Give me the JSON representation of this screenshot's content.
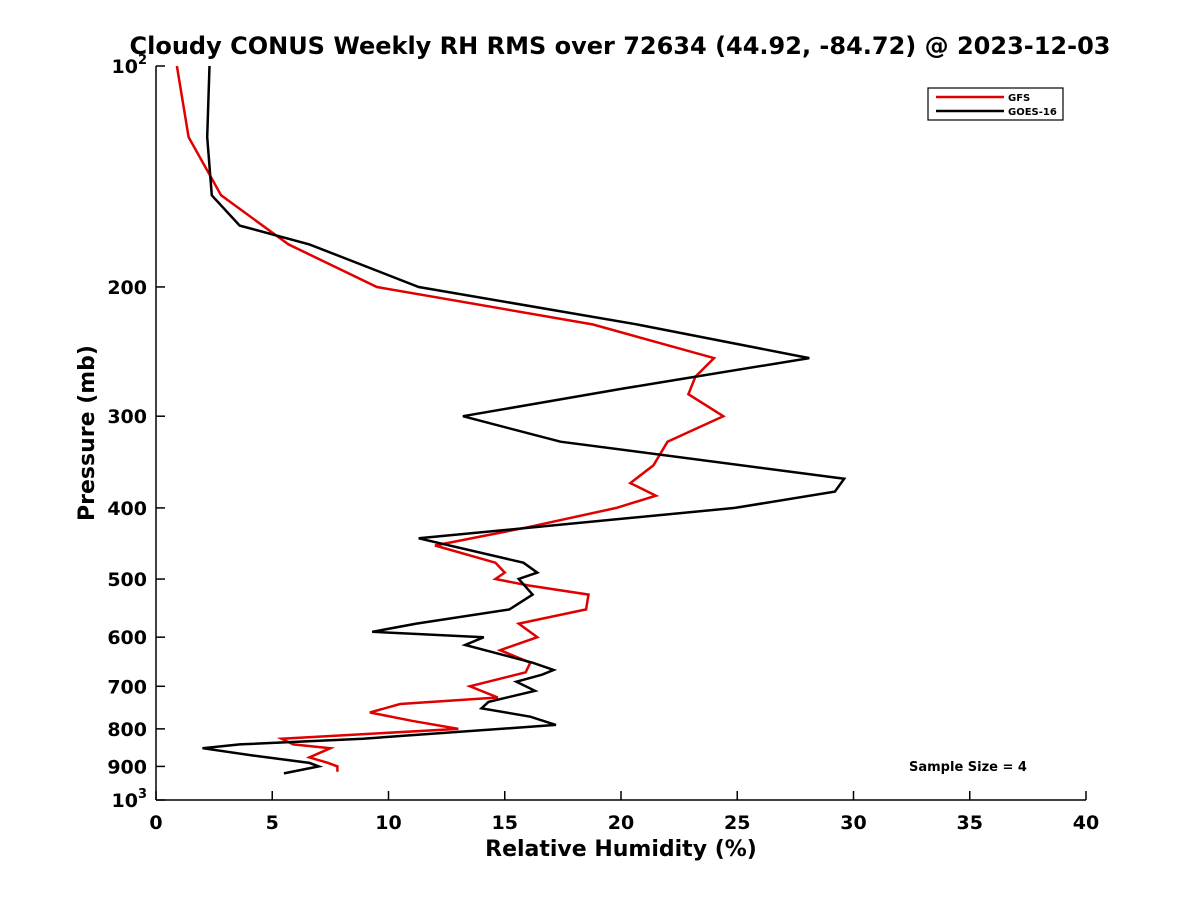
{
  "chart_data": {
    "type": "line",
    "title": "Cloudy CONUS Weekly RH RMS over 72634 (44.92, -84.72) @ 2023-12-03",
    "xlabel": "Relative Humidity (%)",
    "ylabel": "Pressure (mb)",
    "xlim": [
      0,
      40
    ],
    "ylim": [
      100,
      1000
    ],
    "y_scale": "log",
    "y_reversed": true,
    "grid": false,
    "legend_position": "top-right",
    "x_ticks": [
      "0",
      "5",
      "10",
      "15",
      "20",
      "25",
      "30",
      "35",
      "40"
    ],
    "y_ticks": [
      {
        "value": 100,
        "base": "10",
        "exp": "2"
      },
      {
        "value": 200,
        "label": "200"
      },
      {
        "value": 300,
        "label": "300"
      },
      {
        "value": 400,
        "label": "400"
      },
      {
        "value": 500,
        "label": "500"
      },
      {
        "value": 600,
        "label": "600"
      },
      {
        "value": 700,
        "label": "700"
      },
      {
        "value": 800,
        "label": "800"
      },
      {
        "value": 900,
        "label": "900"
      },
      {
        "value": 1000,
        "base": "10",
        "exp": "3"
      }
    ],
    "series": [
      {
        "name": "GFS",
        "color": "#e00000",
        "points": [
          [
            0.9,
            100
          ],
          [
            1.4,
            125
          ],
          [
            2.8,
            150
          ],
          [
            5.7,
            175
          ],
          [
            9.5,
            200
          ],
          [
            18.8,
            225
          ],
          [
            24.0,
            250
          ],
          [
            23.2,
            265
          ],
          [
            22.9,
            280
          ],
          [
            24.4,
            300
          ],
          [
            22.0,
            325
          ],
          [
            21.4,
            350
          ],
          [
            20.4,
            370
          ],
          [
            21.5,
            385
          ],
          [
            19.8,
            400
          ],
          [
            16.0,
            425
          ],
          [
            12.0,
            450
          ],
          [
            14.6,
            475
          ],
          [
            15.0,
            490
          ],
          [
            14.6,
            500
          ],
          [
            16.0,
            510
          ],
          [
            18.6,
            525
          ],
          [
            18.5,
            550
          ],
          [
            15.6,
            575
          ],
          [
            16.4,
            600
          ],
          [
            14.8,
            625
          ],
          [
            16.1,
            650
          ],
          [
            15.9,
            670
          ],
          [
            13.5,
            700
          ],
          [
            14.7,
            725
          ],
          [
            10.5,
            740
          ],
          [
            9.2,
            760
          ],
          [
            11.0,
            780
          ],
          [
            13.0,
            800
          ],
          [
            5.4,
            825
          ],
          [
            5.9,
            840
          ],
          [
            7.5,
            850
          ],
          [
            6.6,
            875
          ],
          [
            7.4,
            890
          ],
          [
            7.8,
            900
          ],
          [
            7.8,
            915
          ]
        ]
      },
      {
        "name": "GOES-16",
        "color": "#000000",
        "points": [
          [
            2.3,
            100
          ],
          [
            2.2,
            125
          ],
          [
            2.4,
            150
          ],
          [
            3.6,
            165
          ],
          [
            6.6,
            175
          ],
          [
            11.3,
            200
          ],
          [
            20.7,
            225
          ],
          [
            28.1,
            250
          ],
          [
            20.1,
            275
          ],
          [
            15.9,
            290
          ],
          [
            13.2,
            300
          ],
          [
            17.4,
            325
          ],
          [
            29.6,
            365
          ],
          [
            29.2,
            380
          ],
          [
            24.9,
            400
          ],
          [
            11.3,
            440
          ],
          [
            15.8,
            475
          ],
          [
            16.4,
            490
          ],
          [
            15.6,
            500
          ],
          [
            16.2,
            525
          ],
          [
            15.2,
            550
          ],
          [
            11.2,
            575
          ],
          [
            9.3,
            590
          ],
          [
            14.1,
            600
          ],
          [
            13.3,
            615
          ],
          [
            16.2,
            650
          ],
          [
            17.1,
            665
          ],
          [
            16.6,
            675
          ],
          [
            15.5,
            690
          ],
          [
            16.3,
            710
          ],
          [
            14.3,
            735
          ],
          [
            14.0,
            750
          ],
          [
            16.1,
            770
          ],
          [
            17.2,
            790
          ],
          [
            8.9,
            825
          ],
          [
            3.6,
            840
          ],
          [
            2.0,
            850
          ],
          [
            4.2,
            870
          ],
          [
            6.6,
            890
          ],
          [
            7.0,
            900
          ],
          [
            5.5,
            920
          ]
        ]
      }
    ],
    "annotations": [
      "Sample Size = 4"
    ]
  }
}
